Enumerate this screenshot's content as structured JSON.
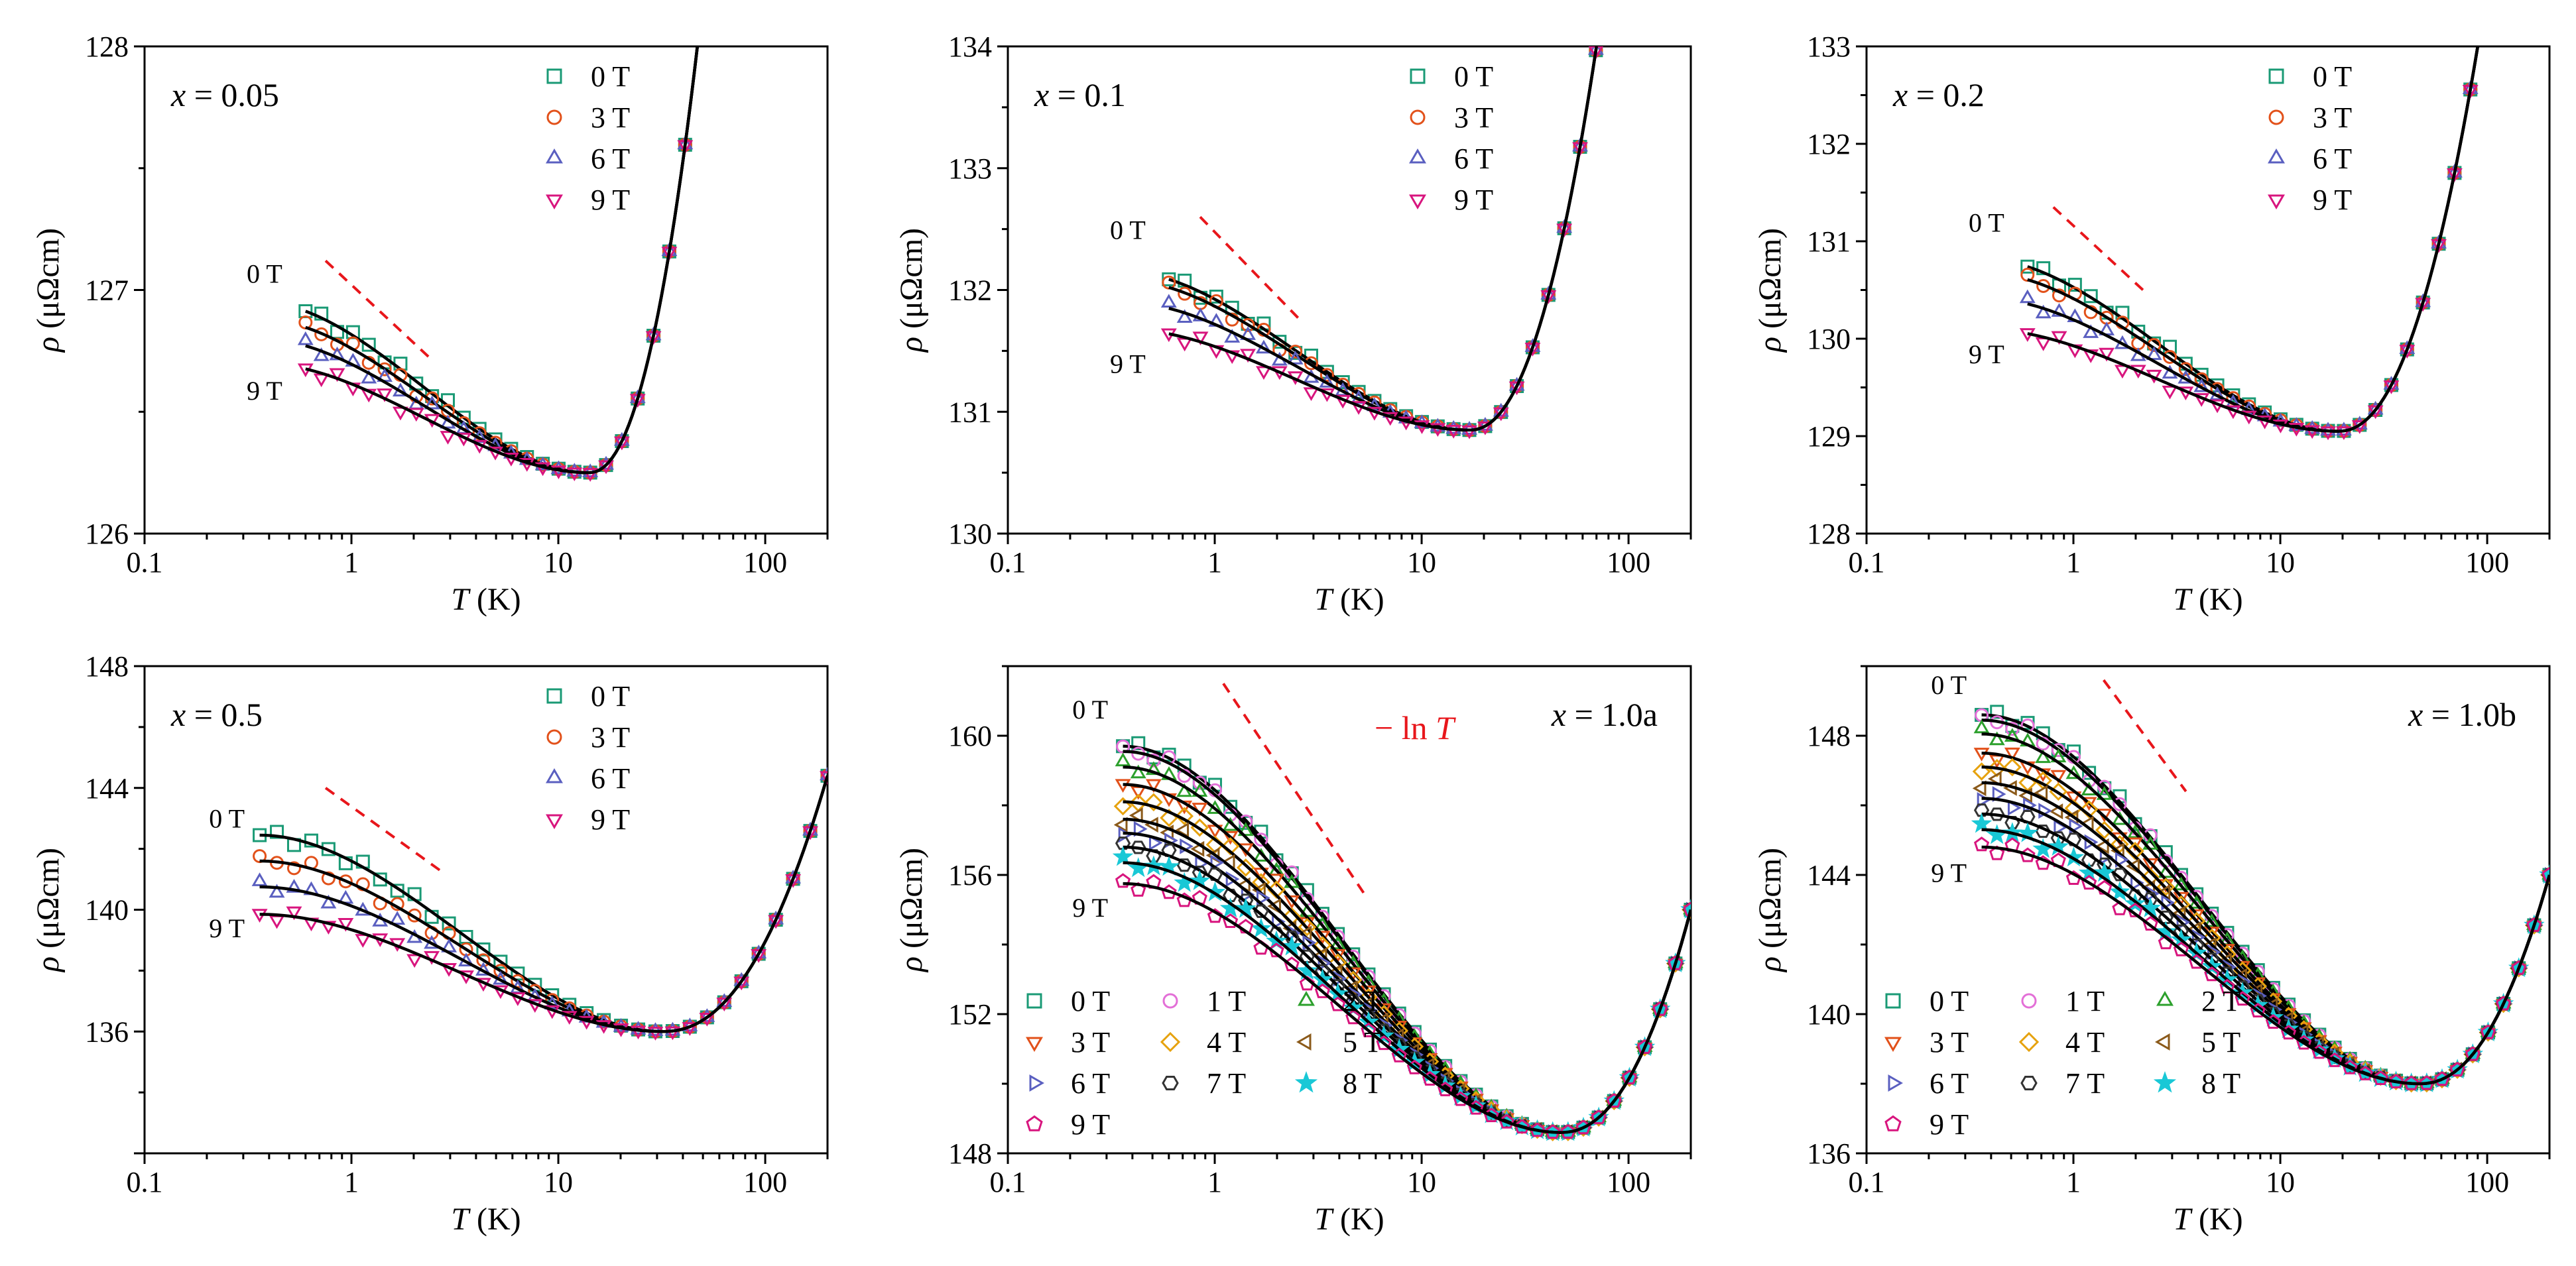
{
  "figure": {
    "common": {
      "xlabel_var": "T",
      "xlabel_unit": " (K)",
      "ylabel_var": "ρ",
      "ylabel_unit": " (μΩcm)",
      "x_ticks": [
        {
          "v": 0.1,
          "l": "0.1"
        },
        {
          "v": 1,
          "l": "1"
        },
        {
          "v": 10,
          "l": "10"
        },
        {
          "v": 100,
          "l": "100"
        }
      ],
      "xlim": [
        0.1,
        200
      ]
    },
    "series_styles": [
      {
        "name": "0 T",
        "color": "#1a9a75",
        "marker": "square"
      },
      {
        "name": "1 T",
        "color": "#e36fd7",
        "marker": "circle"
      },
      {
        "name": "2 T",
        "color": "#2ca02c",
        "marker": "triangle-up"
      },
      {
        "name": "3 T",
        "color": "#e2511a",
        "marker": "triangle-down"
      },
      {
        "name": "4 T",
        "color": "#e6a20e",
        "marker": "diamond"
      },
      {
        "name": "5 T",
        "color": "#8b5a1a",
        "marker": "triangle-left"
      },
      {
        "name": "6 T",
        "color": "#5a5fc0",
        "marker": "triangle-right"
      },
      {
        "name": "7 T",
        "color": "#333333",
        "marker": "hexagon"
      },
      {
        "name": "8 T",
        "color": "#19c8d6",
        "marker": "star"
      },
      {
        "name": "9 T",
        "color": "#d8157e",
        "marker": "pentagon"
      }
    ]
  },
  "chart_data": [
    {
      "type": "scatter",
      "panel_label": "x = 0.05",
      "label_var": "x",
      "label_rest": " = 0.05",
      "xlabel": "T (K)",
      "ylabel": "ρ (μΩcm)",
      "xscale": "log",
      "xlim": [
        0.1,
        200
      ],
      "ylim": [
        126,
        128
      ],
      "y_ticks": [
        126,
        127,
        128
      ],
      "legend": [
        {
          "label": "0 T",
          "color": "#1a9a75",
          "marker": "square"
        },
        {
          "label": "3 T",
          "color": "#e2511a",
          "marker": "circle"
        },
        {
          "label": "6 T",
          "color": "#5a5fc0",
          "marker": "triangle-up"
        },
        {
          "label": "9 T",
          "color": "#d8157e",
          "marker": "triangle-down"
        }
      ],
      "legend_columns": 1,
      "field_labels": [
        {
          "text": "0 T",
          "T": 0.38,
          "rho": 127.03
        },
        {
          "text": "9 T",
          "T": 0.38,
          "rho": 126.55
        }
      ],
      "lnT_line": {
        "T_start": 0.75,
        "rho_start": 127.12,
        "T_end": 2.4,
        "rho_end": 126.72
      },
      "lnT_label": "",
      "minimum": {
        "T": 14,
        "rho": 126.25
      },
      "rise": {
        "T_end": 47,
        "rho_end": 128.0
      },
      "series": [
        {
          "name": "0 T",
          "rho_low": 126.95
        },
        {
          "name": "3 T",
          "rho_low": 126.88
        },
        {
          "name": "6 T",
          "rho_low": 126.8
        },
        {
          "name": "9 T",
          "rho_low": 126.7
        }
      ]
    },
    {
      "type": "scatter",
      "panel_label": "x = 0.1",
      "label_var": "x",
      "label_rest": " = 0.1",
      "xlabel": "T (K)",
      "ylabel": "ρ (μΩcm)",
      "xscale": "log",
      "xlim": [
        0.1,
        200
      ],
      "ylim": [
        130,
        134
      ],
      "y_ticks": [
        130,
        131,
        132,
        133,
        134
      ],
      "legend": [
        {
          "label": "0 T",
          "color": "#1a9a75",
          "marker": "square"
        },
        {
          "label": "3 T",
          "color": "#e2511a",
          "marker": "circle"
        },
        {
          "label": "6 T",
          "color": "#5a5fc0",
          "marker": "triangle-up"
        },
        {
          "label": "9 T",
          "color": "#d8157e",
          "marker": "triangle-down"
        }
      ],
      "legend_columns": 1,
      "field_labels": [
        {
          "text": "0 T",
          "T": 0.38,
          "rho": 132.42
        },
        {
          "text": "9 T",
          "T": 0.38,
          "rho": 131.32
        }
      ],
      "lnT_line": {
        "T_start": 0.85,
        "rho_start": 132.6,
        "T_end": 2.6,
        "rho_end": 131.75
      },
      "lnT_label": "",
      "minimum": {
        "T": 17,
        "rho": 130.85
      },
      "rise": {
        "T_end": 70,
        "rho_end": 134.0
      },
      "series": [
        {
          "name": "0 T",
          "rho_low": 132.15
        },
        {
          "name": "3 T",
          "rho_low": 132.08
        },
        {
          "name": "6 T",
          "rho_low": 131.9
        },
        {
          "name": "9 T",
          "rho_low": 131.68
        }
      ]
    },
    {
      "type": "scatter",
      "panel_label": "x = 0.2",
      "label_var": "x",
      "label_rest": " = 0.2",
      "xlabel": "T (K)",
      "ylabel": "ρ (μΩcm)",
      "xscale": "log",
      "xlim": [
        0.1,
        200
      ],
      "ylim": [
        128,
        133
      ],
      "y_ticks": [
        128,
        129,
        130,
        131,
        132,
        133
      ],
      "legend": [
        {
          "label": "0 T",
          "color": "#1a9a75",
          "marker": "square"
        },
        {
          "label": "3 T",
          "color": "#e2511a",
          "marker": "circle"
        },
        {
          "label": "6 T",
          "color": "#5a5fc0",
          "marker": "triangle-up"
        },
        {
          "label": "9 T",
          "color": "#d8157e",
          "marker": "triangle-down"
        }
      ],
      "legend_columns": 1,
      "field_labels": [
        {
          "text": "0 T",
          "T": 0.38,
          "rho": 131.1
        },
        {
          "text": "9 T",
          "T": 0.38,
          "rho": 129.75
        }
      ],
      "lnT_line": {
        "T_start": 0.8,
        "rho_start": 131.35,
        "T_end": 2.3,
        "rho_end": 130.45
      },
      "lnT_label": "",
      "minimum": {
        "T": 19,
        "rho": 129.05
      },
      "rise": {
        "T_end": 90,
        "rho_end": 133.0
      },
      "series": [
        {
          "name": "0 T",
          "rho_low": 130.82
        },
        {
          "name": "3 T",
          "rho_low": 130.68
        },
        {
          "name": "6 T",
          "rho_low": 130.42
        },
        {
          "name": "9 T",
          "rho_low": 130.1
        }
      ]
    },
    {
      "type": "scatter",
      "panel_label": "x = 0.5",
      "label_var": "x",
      "label_rest": " = 0.5",
      "xlabel": "T (K)",
      "ylabel": "ρ (μΩcm)",
      "xscale": "log",
      "xlim": [
        0.1,
        200
      ],
      "ylim": [
        132,
        148
      ],
      "y_ticks": [
        136,
        140,
        144,
        148
      ],
      "legend": [
        {
          "label": "0 T",
          "color": "#1a9a75",
          "marker": "square"
        },
        {
          "label": "3 T",
          "color": "#e2511a",
          "marker": "circle"
        },
        {
          "label": "6 T",
          "color": "#5a5fc0",
          "marker": "triangle-up"
        },
        {
          "label": "9 T",
          "color": "#d8157e",
          "marker": "triangle-down"
        }
      ],
      "legend_columns": 1,
      "field_labels": [
        {
          "text": "0 T",
          "T": 0.25,
          "rho": 142.7
        },
        {
          "text": "9 T",
          "T": 0.25,
          "rho": 139.1
        }
      ],
      "lnT_line": {
        "T_start": 0.75,
        "rho_start": 144.0,
        "T_end": 2.8,
        "rho_end": 141.2
      },
      "lnT_label": "",
      "minimum": {
        "T": 32,
        "rho": 136.0
      },
      "rise": {
        "T_end": 200,
        "rho_end": 144.4
      },
      "series": [
        {
          "name": "0 T",
          "rho_low": 142.45
        },
        {
          "name": "3 T",
          "rho_low": 141.6
        },
        {
          "name": "6 T",
          "rho_low": 140.75
        },
        {
          "name": "9 T",
          "rho_low": 139.85
        }
      ]
    },
    {
      "type": "scatter",
      "panel_label": "x = 1.0a",
      "label_var": "x",
      "label_rest": " = 1.0a",
      "xlabel": "T (K)",
      "ylabel": "ρ (μΩcm)",
      "xscale": "log",
      "xlim": [
        0.1,
        200
      ],
      "ylim": [
        148,
        162
      ],
      "y_ticks": [
        148,
        152,
        156,
        160
      ],
      "legend": [
        {
          "label": "0 T",
          "color": "#1a9a75",
          "marker": "square"
        },
        {
          "label": "1 T",
          "color": "#e36fd7",
          "marker": "circle"
        },
        {
          "label": "2 T",
          "color": "#2ca02c",
          "marker": "triangle-up"
        },
        {
          "label": "3 T",
          "color": "#e2511a",
          "marker": "triangle-down"
        },
        {
          "label": "4 T",
          "color": "#e6a20e",
          "marker": "diamond"
        },
        {
          "label": "5 T",
          "color": "#8b5a1a",
          "marker": "triangle-left"
        },
        {
          "label": "6 T",
          "color": "#5a5fc0",
          "marker": "triangle-right"
        },
        {
          "label": "7 T",
          "color": "#333333",
          "marker": "hexagon"
        },
        {
          "label": "8 T",
          "color": "#19c8d6",
          "marker": "star"
        },
        {
          "label": "9 T",
          "color": "#d8157e",
          "marker": "pentagon"
        }
      ],
      "legend_columns": 3,
      "field_labels": [
        {
          "text": "0 T",
          "T": 0.25,
          "rho": 160.5
        },
        {
          "text": "9 T",
          "T": 0.25,
          "rho": 154.8
        }
      ],
      "lnT_line": {
        "T_start": 1.1,
        "rho_start": 161.5,
        "T_end": 5.5,
        "rho_end": 155.3
      },
      "lnT_label": "− ln T",
      "minimum": {
        "T": 47,
        "rho": 148.6
      },
      "rise": {
        "T_end": 200,
        "rho_end": 155.0
      },
      "series": [
        {
          "name": "0 T",
          "rho_low": 159.7
        },
        {
          "name": "1 T",
          "rho_low": 159.55
        },
        {
          "name": "2 T",
          "rho_low": 159.1
        },
        {
          "name": "3 T",
          "rho_low": 158.6
        },
        {
          "name": "4 T",
          "rho_low": 158.1
        },
        {
          "name": "5 T",
          "rho_low": 157.6
        },
        {
          "name": "6 T",
          "rho_low": 157.2
        },
        {
          "name": "7 T",
          "rho_low": 156.8
        },
        {
          "name": "8 T",
          "rho_low": 156.35
        },
        {
          "name": "9 T",
          "rho_low": 155.75
        }
      ]
    },
    {
      "type": "scatter",
      "panel_label": "x = 1.0b",
      "label_var": "x",
      "label_rest": " = 1.0b",
      "xlabel": "T (K)",
      "ylabel": "ρ (μΩcm)",
      "xscale": "log",
      "xlim": [
        0.1,
        200
      ],
      "ylim": [
        136,
        150
      ],
      "y_ticks": [
        136,
        140,
        144,
        148
      ],
      "legend": [
        {
          "label": "0 T",
          "color": "#1a9a75",
          "marker": "square"
        },
        {
          "label": "1 T",
          "color": "#e36fd7",
          "marker": "circle"
        },
        {
          "label": "2 T",
          "color": "#2ca02c",
          "marker": "triangle-up"
        },
        {
          "label": "3 T",
          "color": "#e2511a",
          "marker": "triangle-down"
        },
        {
          "label": "4 T",
          "color": "#e6a20e",
          "marker": "diamond"
        },
        {
          "label": "5 T",
          "color": "#8b5a1a",
          "marker": "triangle-left"
        },
        {
          "label": "6 T",
          "color": "#5a5fc0",
          "marker": "triangle-right"
        },
        {
          "label": "7 T",
          "color": "#333333",
          "marker": "hexagon"
        },
        {
          "label": "8 T",
          "color": "#19c8d6",
          "marker": "star"
        },
        {
          "label": "9 T",
          "color": "#d8157e",
          "marker": "pentagon"
        }
      ],
      "legend_columns": 3,
      "field_labels": [
        {
          "text": "0 T",
          "T": 0.25,
          "rho": 149.2
        },
        {
          "text": "9 T",
          "T": 0.25,
          "rho": 143.8
        }
      ],
      "lnT_line": {
        "T_start": 1.4,
        "rho_start": 149.6,
        "T_end": 3.5,
        "rho_end": 146.4
      },
      "lnT_label": "",
      "minimum": {
        "T": 47,
        "rho": 138.0
      },
      "rise": {
        "T_end": 200,
        "rho_end": 144.0
      },
      "series": [
        {
          "name": "0 T",
          "rho_low": 148.6
        },
        {
          "name": "1 T",
          "rho_low": 148.45
        },
        {
          "name": "2 T",
          "rho_low": 148.05
        },
        {
          "name": "3 T",
          "rho_low": 147.5
        },
        {
          "name": "4 T",
          "rho_low": 147.1
        },
        {
          "name": "5 T",
          "rho_low": 146.65
        },
        {
          "name": "6 T",
          "rho_low": 146.2
        },
        {
          "name": "7 T",
          "rho_low": 145.75
        },
        {
          "name": "8 T",
          "rho_low": 145.3
        },
        {
          "name": "9 T",
          "rho_low": 144.8
        }
      ]
    }
  ]
}
